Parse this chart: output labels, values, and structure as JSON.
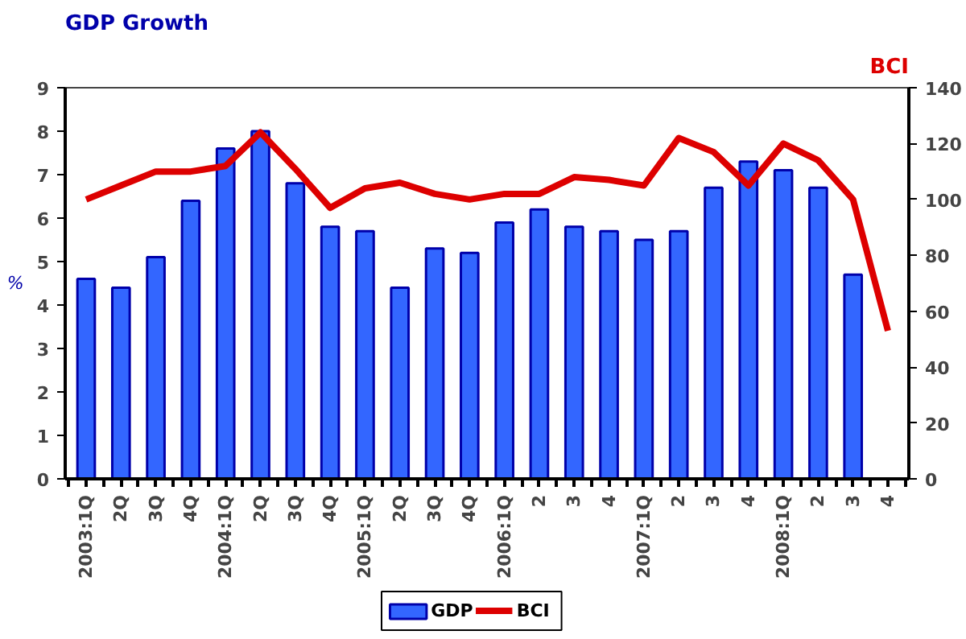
{
  "chart_data": {
    "type": "bar",
    "title": "GDP Growth",
    "ylabel": "%",
    "y2label": "BCI",
    "categories": [
      "2003:1Q",
      "2Q",
      "3Q",
      "4Q",
      "2004:1Q",
      "2Q",
      "3Q",
      "4Q",
      "2005:1Q",
      "2Q",
      "3Q",
      "4Q",
      "2006:1Q",
      "2",
      "3",
      "4",
      "2007:1Q",
      "2",
      "3",
      "4",
      "2008:1Q",
      "2",
      "3",
      "4"
    ],
    "series": [
      {
        "name": "GDP",
        "color": "#3366ff",
        "values": [
          4.6,
          4.4,
          5.1,
          6.4,
          7.6,
          8.0,
          6.8,
          5.8,
          5.7,
          4.4,
          5.3,
          5.2,
          5.9,
          6.2,
          5.8,
          5.7,
          5.5,
          5.7,
          6.7,
          7.3,
          7.1,
          6.7,
          4.7,
          null
        ]
      },
      {
        "name": "BCI",
        "type": "line",
        "axis": "y2",
        "color": "#dd0000",
        "values": [
          100,
          105,
          110,
          110,
          112,
          124,
          111,
          97,
          104,
          106,
          102,
          100,
          102,
          102,
          108,
          107,
          105,
          122,
          117,
          105,
          120,
          114,
          100,
          53
        ]
      }
    ],
    "ylim": [
      0,
      9
    ],
    "yticks": [
      0,
      1,
      2,
      3,
      4,
      5,
      6,
      7,
      8,
      9
    ],
    "y2lim": [
      0,
      140
    ],
    "y2ticks": [
      0,
      20,
      40,
      60,
      80,
      100,
      120,
      140
    ],
    "legend": "bottom",
    "grid": false,
    "marker": "none",
    "line_style": "solid"
  }
}
